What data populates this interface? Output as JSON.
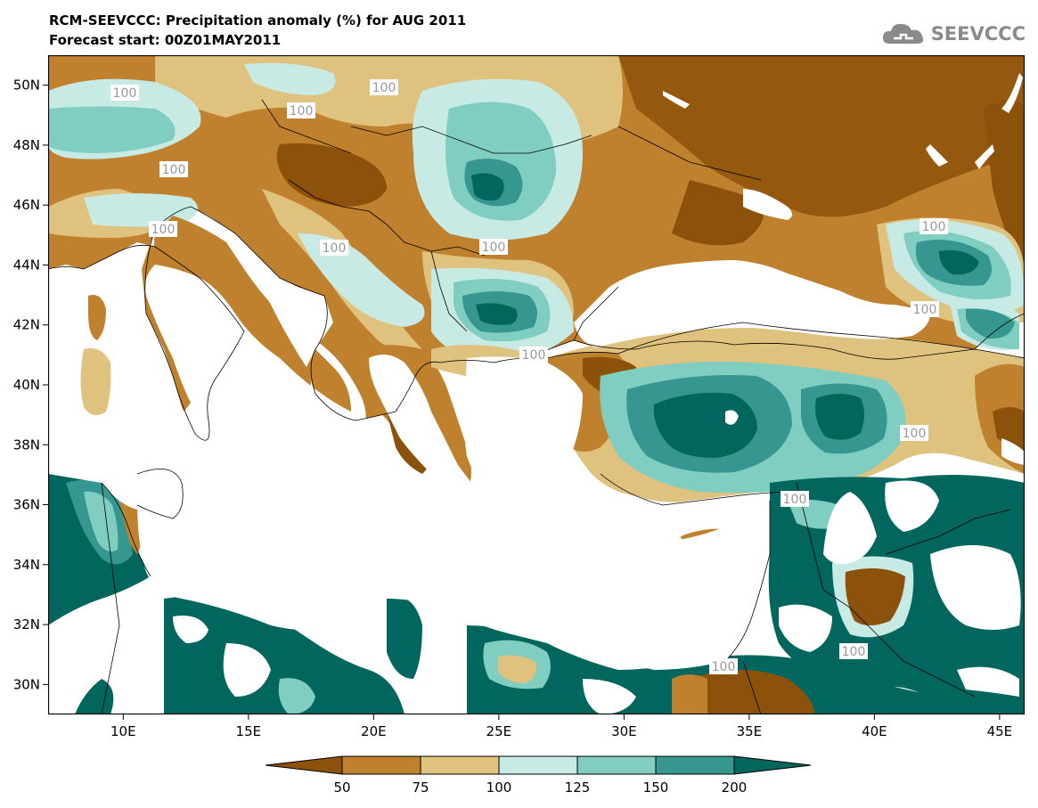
{
  "title": {
    "line1": "RCM-SEEVCCC: Precipitation anomaly (%) for AUG 2011",
    "line2": "Forecast start: 00Z01MAY2011"
  },
  "logo": {
    "text": "SEEVCCC",
    "icon": "cloud-logo-icon"
  },
  "map": {
    "lat_labels": [
      "50N",
      "48N",
      "46N",
      "44N",
      "42N",
      "40N",
      "38N",
      "36N",
      "34N",
      "32N",
      "30N"
    ],
    "lon_labels": [
      "10E",
      "15E",
      "20E",
      "25E",
      "30E",
      "35E",
      "40E",
      "45E"
    ],
    "lon_range": [
      7,
      46
    ],
    "lat_range": [
      29,
      51
    ],
    "contour_label": "100",
    "colors": {
      "land_lt50": "#8c510a",
      "land_50_75": "#bf812d",
      "land_75_100": "#dfc27d",
      "land_100_125": "#c7eae5",
      "land_125_150": "#80cdc1",
      "land_150_200": "#35978f",
      "land_gt200": "#01665e",
      "sea": "#ffffff",
      "contour": "#aaaaaa"
    }
  },
  "colorbar": {
    "ticks": [
      "50",
      "75",
      "100",
      "125",
      "150",
      "200"
    ],
    "colors": [
      "#8c510a",
      "#bf812d",
      "#dfc27d",
      "#c7eae5",
      "#80cdc1",
      "#35978f",
      "#01665e"
    ]
  }
}
